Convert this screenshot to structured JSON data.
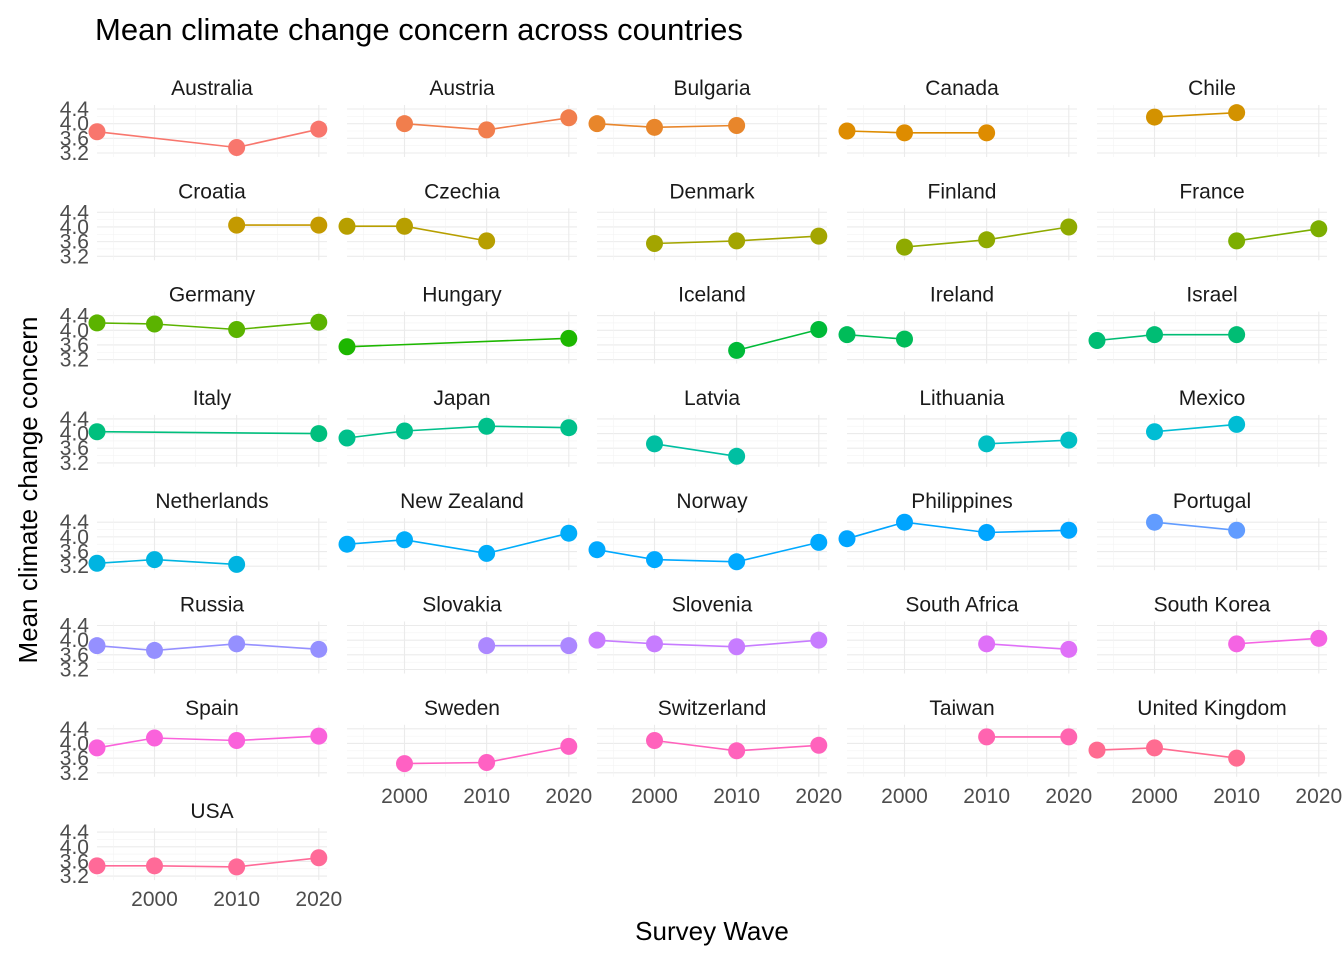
{
  "chart_data": {
    "type": "line",
    "title": "Mean climate change concern across countries",
    "xlabel": "Survey Wave",
    "ylabel": "Mean climate change concern",
    "x_ticks": [
      2000,
      2010,
      2020
    ],
    "y_ticks": [
      "3.2",
      "3.6",
      "4.0",
      "4.4"
    ],
    "ylim": [
      3.2,
      4.4
    ],
    "xlim": [
      1993,
      2021
    ],
    "grid": true,
    "layout": "facet grid, 5 columns, free x-axis per column",
    "series": [
      {
        "name": "Australia",
        "color": "#F8766D",
        "points": [
          [
            1993,
            3.78
          ],
          [
            2010,
            3.35
          ],
          [
            2020,
            3.85
          ]
        ]
      },
      {
        "name": "Austria",
        "color": "#F17E4D",
        "points": [
          [
            2000,
            4.0
          ],
          [
            2010,
            3.83
          ],
          [
            2020,
            4.16
          ]
        ]
      },
      {
        "name": "Bulgaria",
        "color": "#E8862B",
        "points": [
          [
            1993,
            4.0
          ],
          [
            2000,
            3.9
          ],
          [
            2010,
            3.95
          ]
        ]
      },
      {
        "name": "Canada",
        "color": "#DE8C00",
        "points": [
          [
            1993,
            3.8
          ],
          [
            2000,
            3.75
          ],
          [
            2010,
            3.75
          ]
        ]
      },
      {
        "name": "Chile",
        "color": "#D39200",
        "points": [
          [
            2000,
            4.18
          ],
          [
            2010,
            4.3
          ]
        ]
      },
      {
        "name": "Croatia",
        "color": "#C49A00",
        "points": [
          [
            2010,
            4.05
          ],
          [
            2020,
            4.05
          ]
        ]
      },
      {
        "name": "Czechia",
        "color": "#B79F00",
        "points": [
          [
            1993,
            4.02
          ],
          [
            2000,
            4.02
          ],
          [
            2010,
            3.62
          ]
        ]
      },
      {
        "name": "Denmark",
        "color": "#A3A500",
        "points": [
          [
            2000,
            3.55
          ],
          [
            2010,
            3.62
          ],
          [
            2020,
            3.75
          ]
        ]
      },
      {
        "name": "Finland",
        "color": "#8FAA00",
        "points": [
          [
            2000,
            3.45
          ],
          [
            2010,
            3.65
          ],
          [
            2020,
            4.0
          ]
        ]
      },
      {
        "name": "France",
        "color": "#7CAE00",
        "points": [
          [
            2010,
            3.62
          ],
          [
            2020,
            3.95
          ]
        ]
      },
      {
        "name": "Germany",
        "color": "#5BB300",
        "points": [
          [
            1993,
            4.2
          ],
          [
            2000,
            4.17
          ],
          [
            2010,
            4.02
          ],
          [
            2020,
            4.22
          ]
        ]
      },
      {
        "name": "Hungary",
        "color": "#1DB700",
        "points": [
          [
            1993,
            3.55
          ],
          [
            2020,
            3.78
          ]
        ]
      },
      {
        "name": "Iceland",
        "color": "#00BA38",
        "points": [
          [
            2010,
            3.45
          ],
          [
            2020,
            4.02
          ]
        ]
      },
      {
        "name": "Ireland",
        "color": "#00BC59",
        "points": [
          [
            1993,
            3.88
          ],
          [
            2000,
            3.76
          ]
        ]
      },
      {
        "name": "Israel",
        "color": "#00BD74",
        "points": [
          [
            1993,
            3.72
          ],
          [
            2000,
            3.88
          ],
          [
            2010,
            3.88
          ]
        ]
      },
      {
        "name": "Italy",
        "color": "#00BF7D",
        "points": [
          [
            1993,
            4.05
          ],
          [
            2020,
            4.0
          ]
        ]
      },
      {
        "name": "Japan",
        "color": "#00C08B",
        "points": [
          [
            1993,
            3.88
          ],
          [
            2000,
            4.07
          ],
          [
            2010,
            4.2
          ],
          [
            2020,
            4.16
          ]
        ]
      },
      {
        "name": "Latvia",
        "color": "#00BFA2",
        "points": [
          [
            2000,
            3.72
          ],
          [
            2010,
            3.38
          ]
        ]
      },
      {
        "name": "Lithuania",
        "color": "#00BFC4",
        "points": [
          [
            2010,
            3.72
          ],
          [
            2020,
            3.82
          ]
        ]
      },
      {
        "name": "Mexico",
        "color": "#00BDD4",
        "points": [
          [
            2000,
            4.05
          ],
          [
            2010,
            4.25
          ]
        ]
      },
      {
        "name": "Netherlands",
        "color": "#00B4E1",
        "points": [
          [
            1993,
            3.28
          ],
          [
            2000,
            3.38
          ],
          [
            2010,
            3.25
          ]
        ]
      },
      {
        "name": "New Zealand",
        "color": "#00ADFA",
        "points": [
          [
            1993,
            3.8
          ],
          [
            2000,
            3.92
          ],
          [
            2010,
            3.55
          ],
          [
            2020,
            4.1
          ]
        ]
      },
      {
        "name": "Norway",
        "color": "#00A9FF",
        "points": [
          [
            1993,
            3.65
          ],
          [
            2000,
            3.38
          ],
          [
            2010,
            3.32
          ],
          [
            2020,
            3.85
          ]
        ]
      },
      {
        "name": "Philippines",
        "color": "#00A5FF",
        "points": [
          [
            1993,
            3.95
          ],
          [
            2000,
            4.4
          ],
          [
            2010,
            4.12
          ],
          [
            2020,
            4.18
          ]
        ]
      },
      {
        "name": "Portugal",
        "color": "#619CFF",
        "points": [
          [
            2000,
            4.4
          ],
          [
            2010,
            4.18
          ]
        ]
      },
      {
        "name": "Russia",
        "color": "#9590FF",
        "points": [
          [
            1993,
            3.85
          ],
          [
            2000,
            3.72
          ],
          [
            2010,
            3.9
          ],
          [
            2020,
            3.75
          ]
        ]
      },
      {
        "name": "Slovakia",
        "color": "#AC88FF",
        "points": [
          [
            2010,
            3.85
          ],
          [
            2020,
            3.85
          ]
        ]
      },
      {
        "name": "Slovenia",
        "color": "#C77CFF",
        "points": [
          [
            1993,
            4.0
          ],
          [
            2000,
            3.9
          ],
          [
            2010,
            3.82
          ],
          [
            2020,
            4.0
          ]
        ]
      },
      {
        "name": "South Africa",
        "color": "#DF70F8",
        "points": [
          [
            2010,
            3.9
          ],
          [
            2020,
            3.75
          ]
        ]
      },
      {
        "name": "South Korea",
        "color": "#F564E3",
        "points": [
          [
            2010,
            3.9
          ],
          [
            2020,
            4.05
          ]
        ]
      },
      {
        "name": "Spain",
        "color": "#FA62DB",
        "points": [
          [
            1993,
            3.88
          ],
          [
            2000,
            4.15
          ],
          [
            2010,
            4.08
          ],
          [
            2020,
            4.2
          ]
        ]
      },
      {
        "name": "Sweden",
        "color": "#FF61C3",
        "points": [
          [
            2000,
            3.45
          ],
          [
            2010,
            3.48
          ],
          [
            2020,
            3.92
          ]
        ]
      },
      {
        "name": "Switzerland",
        "color": "#FF62BC",
        "points": [
          [
            2000,
            4.08
          ],
          [
            2010,
            3.8
          ],
          [
            2020,
            3.95
          ]
        ]
      },
      {
        "name": "Taiwan",
        "color": "#FF64B0",
        "points": [
          [
            2010,
            4.18
          ],
          [
            2020,
            4.18
          ]
        ]
      },
      {
        "name": "United Kingdom",
        "color": "#FF6C91",
        "points": [
          [
            1993,
            3.82
          ],
          [
            2000,
            3.88
          ],
          [
            2010,
            3.6
          ]
        ]
      },
      {
        "name": "USA",
        "color": "#FF6A98",
        "points": [
          [
            1993,
            3.48
          ],
          [
            2000,
            3.48
          ],
          [
            2010,
            3.45
          ],
          [
            2020,
            3.7
          ]
        ]
      }
    ]
  }
}
